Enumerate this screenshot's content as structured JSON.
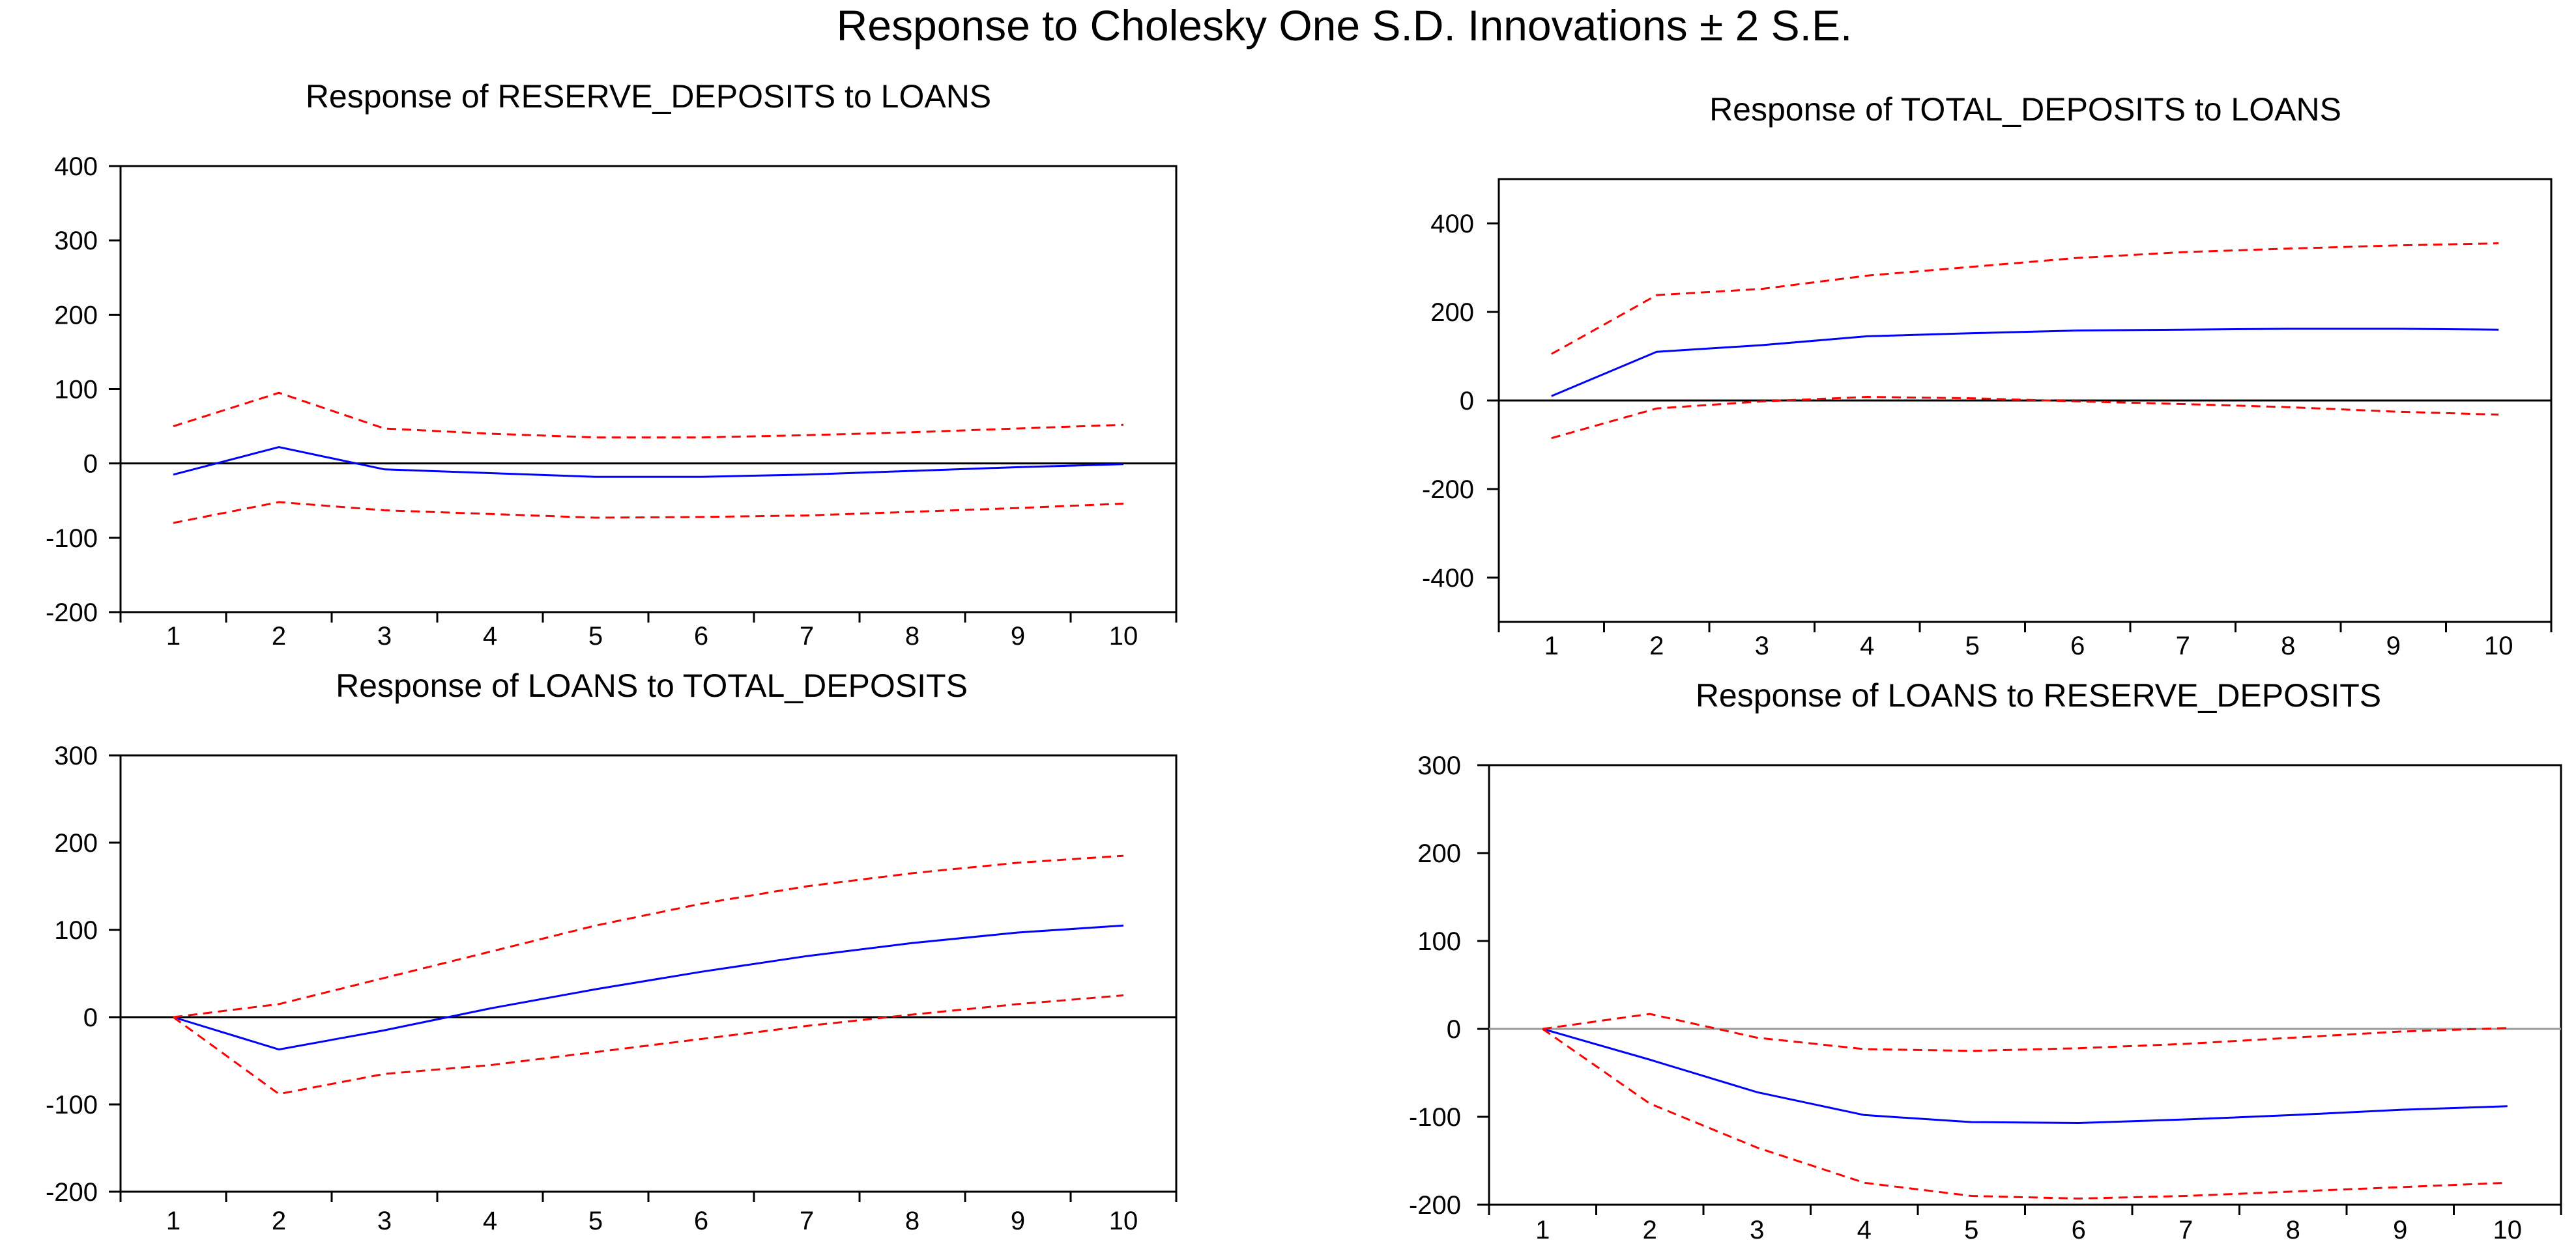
{
  "main_title": "Response to Cholesky One S.D. Innovations ± 2 S.E.",
  "colors": {
    "response": "#0000ff",
    "band": "#ff0000",
    "axis": "#000000",
    "zero_light": "#999999"
  },
  "chart_data": [
    {
      "type": "line",
      "title": "Response of RESERVE_DEPOSITS to LOANS",
      "x": [
        1,
        2,
        3,
        4,
        5,
        6,
        7,
        8,
        9,
        10
      ],
      "ylim": [
        -200,
        400
      ],
      "yticks": [
        -200,
        -100,
        0,
        100,
        200,
        300,
        400
      ],
      "series": [
        {
          "role": "response",
          "values": [
            -15,
            22,
            -8,
            -13,
            -18,
            -18,
            -15,
            -10,
            -5,
            -1
          ]
        },
        {
          "role": "upper",
          "values": [
            50,
            95,
            47,
            40,
            35,
            35,
            38,
            42,
            47,
            52
          ]
        },
        {
          "role": "lower",
          "values": [
            -80,
            -52,
            -63,
            -68,
            -73,
            -72,
            -70,
            -65,
            -60,
            -54
          ]
        }
      ]
    },
    {
      "type": "line",
      "title": "Response of TOTAL_DEPOSITS to LOANS",
      "x": [
        1,
        2,
        3,
        4,
        5,
        6,
        7,
        8,
        9,
        10
      ],
      "ylim": [
        -500,
        500
      ],
      "yticks": [
        -400,
        -200,
        0,
        200,
        400
      ],
      "series": [
        {
          "role": "response",
          "values": [
            10,
            110,
            125,
            145,
            152,
            158,
            160,
            162,
            162,
            160
          ]
        },
        {
          "role": "upper",
          "values": [
            105,
            238,
            252,
            282,
            302,
            322,
            335,
            343,
            350,
            355
          ]
        },
        {
          "role": "lower",
          "values": [
            -85,
            -18,
            -2,
            8,
            5,
            -2,
            -8,
            -15,
            -25,
            -32
          ]
        }
      ]
    },
    {
      "type": "line",
      "title": "Response of LOANS to TOTAL_DEPOSITS",
      "x": [
        1,
        2,
        3,
        4,
        5,
        6,
        7,
        8,
        9,
        10
      ],
      "ylim": [
        -200,
        300
      ],
      "yticks": [
        -200,
        -100,
        0,
        100,
        200,
        300
      ],
      "series": [
        {
          "role": "response",
          "values": [
            0,
            -37,
            -15,
            10,
            32,
            52,
            70,
            85,
            97,
            105
          ]
        },
        {
          "role": "upper",
          "values": [
            0,
            15,
            45,
            75,
            105,
            130,
            150,
            165,
            177,
            185
          ]
        },
        {
          "role": "lower",
          "values": [
            0,
            -88,
            -65,
            -55,
            -40,
            -25,
            -10,
            3,
            15,
            25
          ]
        }
      ]
    },
    {
      "type": "line",
      "title": "Response of LOANS to RESERVE_DEPOSITS",
      "x": [
        1,
        2,
        3,
        4,
        5,
        6,
        7,
        8,
        9,
        10
      ],
      "ylim": [
        -200,
        300
      ],
      "yticks": [
        -200,
        -100,
        0,
        100,
        200,
        300
      ],
      "series": [
        {
          "role": "response",
          "values": [
            0,
            -35,
            -72,
            -98,
            -106,
            -107,
            -103,
            -98,
            -92,
            -88
          ]
        },
        {
          "role": "upper",
          "values": [
            0,
            17,
            -10,
            -23,
            -25,
            -22,
            -17,
            -10,
            -3,
            1
          ]
        },
        {
          "role": "lower",
          "values": [
            0,
            -85,
            -135,
            -175,
            -190,
            -193,
            -190,
            -185,
            -180,
            -175
          ]
        }
      ]
    }
  ]
}
